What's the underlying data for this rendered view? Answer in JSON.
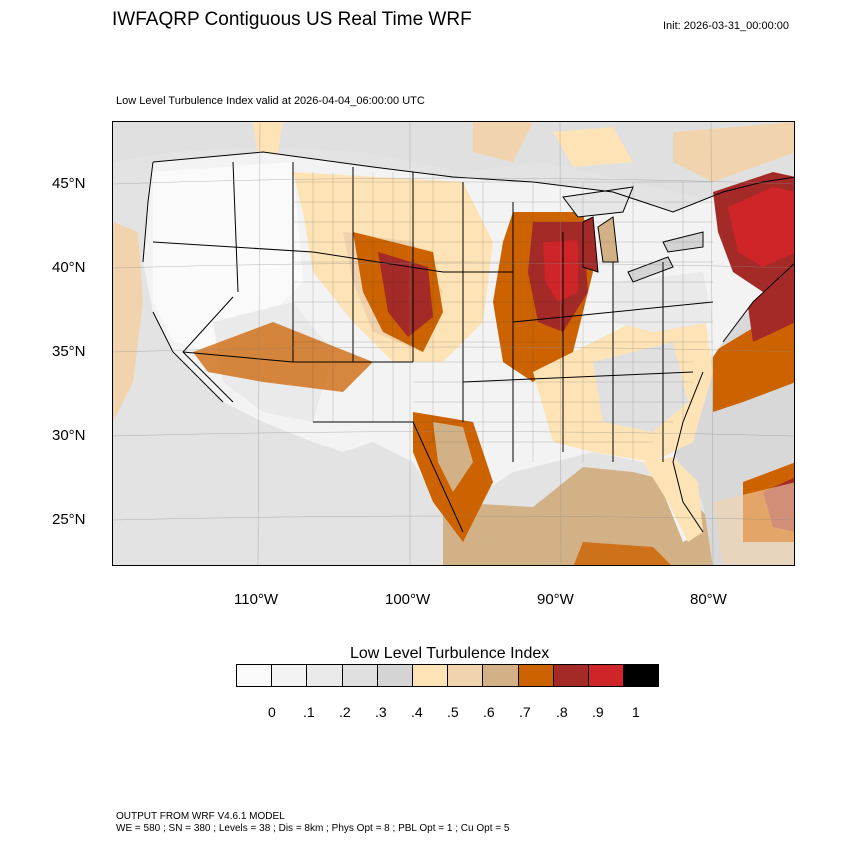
{
  "header": {
    "title": "IWFAQRP Contiguous US Real Time WRF",
    "init": "Init: 2026-03-31_00:00:00",
    "subtitle": "Low Level Turbulence Index valid at 2026-04-04_06:00:00 UTC"
  },
  "map": {
    "lat_labels": [
      "45°N",
      "40°N",
      "35°N",
      "30°N",
      "25°N"
    ],
    "lon_labels": [
      "110°W",
      "100°W",
      "90°W",
      "80°W"
    ],
    "extent": {
      "lon": [
        -120,
        -75
      ],
      "lat": [
        22,
        48
      ]
    },
    "high_index_regions": [
      "Nebraska/Kansas",
      "Iowa/Illinois/Wisconsin",
      "New England",
      "Texas Gulf coast",
      "Atlantic offshore"
    ]
  },
  "legend": {
    "title": "Low Level Turbulence Index",
    "colors": [
      "#fafafa",
      "#f3f3f3",
      "#eaeaea",
      "#e0e0e0",
      "#d4d4d4",
      "#fde3b6",
      "#f1d4ad",
      "#d3b187",
      "#cc6200",
      "#a42a28",
      "#cf2428",
      "#000000"
    ],
    "ticks": [
      "0",
      ".1",
      ".2",
      ".3",
      ".4",
      ".5",
      ".6",
      ".7",
      ".8",
      ".9",
      "1"
    ]
  },
  "footer": {
    "line1": "OUTPUT FROM WRF V4.6.1 MODEL",
    "line2": "WE = 580 ; SN = 380 ; Levels = 38 ; Dis = 8km ; Phys Opt = 8 ; PBL Opt = 1 ; Cu Opt = 5"
  }
}
